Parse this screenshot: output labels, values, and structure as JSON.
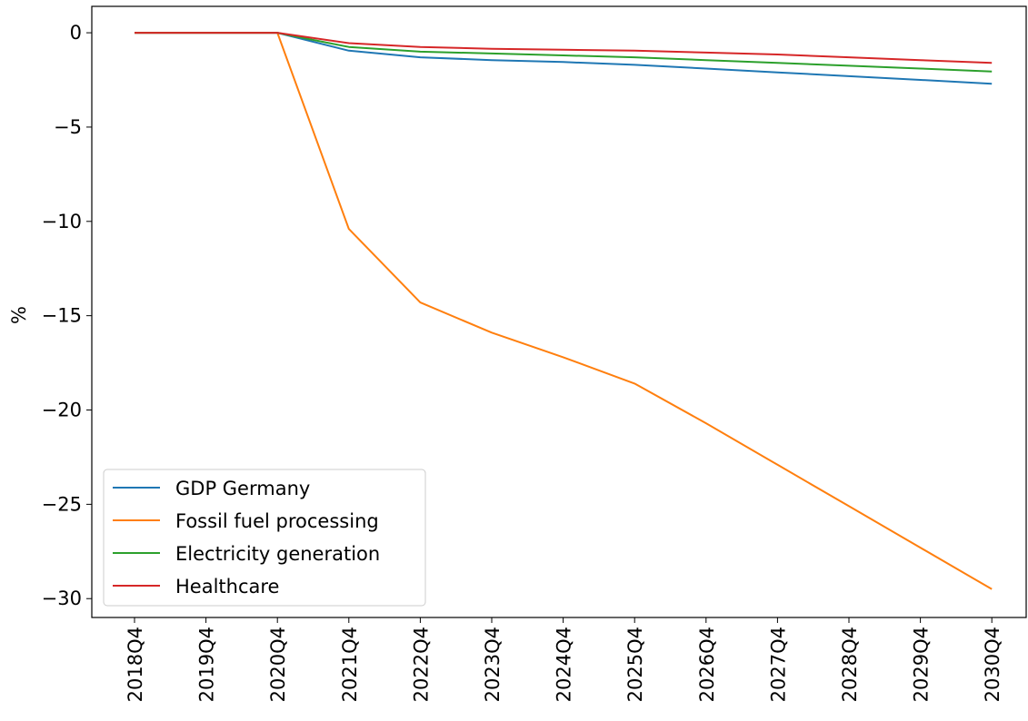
{
  "chart_data": {
    "type": "line",
    "title": "",
    "xlabel": "",
    "ylabel": "%",
    "categories": [
      "2018Q4",
      "2019Q4",
      "2020Q4",
      "2021Q4",
      "2022Q4",
      "2023Q4",
      "2024Q4",
      "2025Q4",
      "2026Q4",
      "2027Q4",
      "2028Q4",
      "2029Q4",
      "2030Q4"
    ],
    "ylim": [
      -31,
      1.4
    ],
    "yticks": [
      0,
      -5,
      -10,
      -15,
      -20,
      -25,
      -30
    ],
    "ytick_labels": [
      "0",
      "−5",
      "−10",
      "−15",
      "−20",
      "−25",
      "−30"
    ],
    "grid": false,
    "legend_position": "lower-left",
    "series": [
      {
        "name": "GDP Germany",
        "color": "#1f77b4",
        "values": [
          0,
          0,
          0,
          -0.95,
          -1.3,
          -1.45,
          -1.55,
          -1.7,
          -1.9,
          -2.1,
          -2.3,
          -2.5,
          -2.7
        ]
      },
      {
        "name": "Fossil fuel processing",
        "color": "#ff7f0e",
        "values": [
          0,
          0,
          0,
          -10.4,
          -14.3,
          -15.9,
          -17.2,
          -18.6,
          -20.7,
          -22.9,
          -25.1,
          -27.3,
          -29.5
        ]
      },
      {
        "name": "Electricity generation",
        "color": "#2ca02c",
        "values": [
          0,
          0,
          0,
          -0.75,
          -1.0,
          -1.1,
          -1.2,
          -1.3,
          -1.45,
          -1.6,
          -1.75,
          -1.9,
          -2.05
        ]
      },
      {
        "name": "Healthcare",
        "color": "#d62728",
        "values": [
          0,
          0,
          0,
          -0.55,
          -0.75,
          -0.85,
          -0.9,
          -0.95,
          -1.05,
          -1.15,
          -1.3,
          -1.45,
          -1.6
        ]
      }
    ]
  }
}
